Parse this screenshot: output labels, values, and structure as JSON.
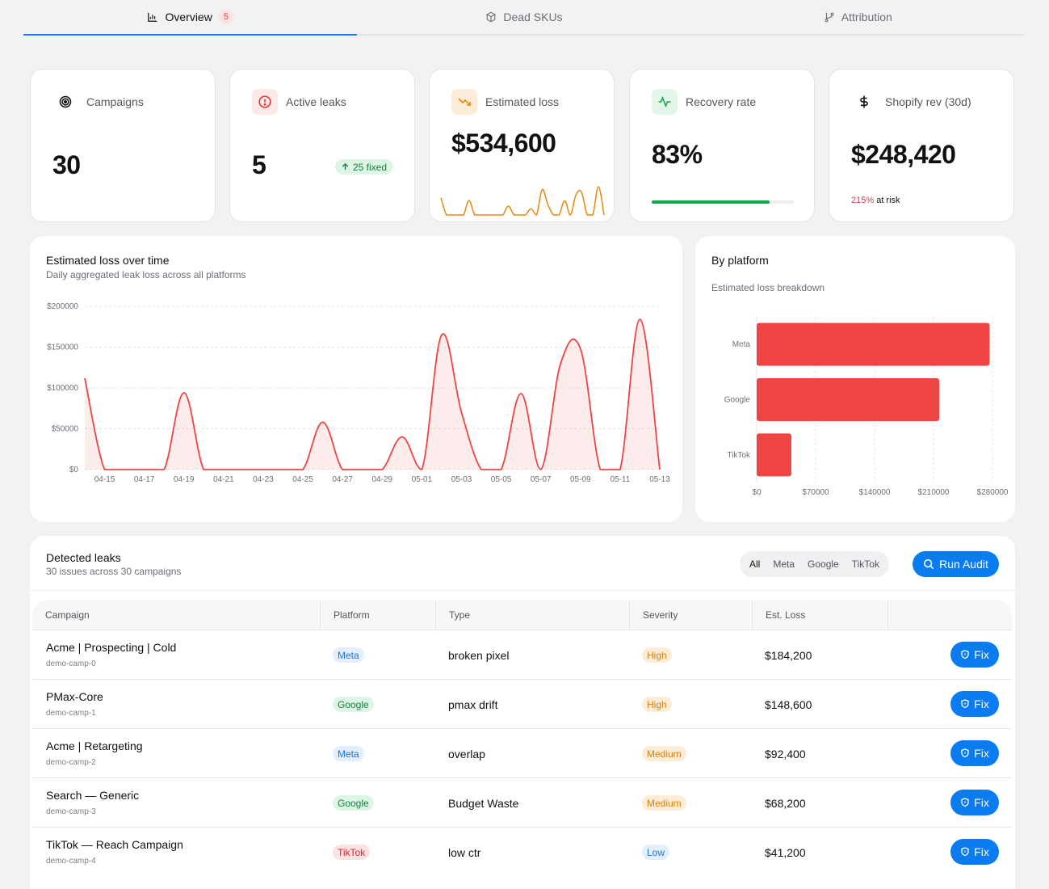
{
  "tabs": [
    {
      "label": "Overview",
      "badge": "5",
      "active": true,
      "icon": "bar-chart-icon"
    },
    {
      "label": "Dead SKUs",
      "active": false,
      "icon": "package-icon"
    },
    {
      "label": "Attribution",
      "active": false,
      "icon": "git-branch-icon"
    }
  ],
  "kpis": {
    "campaigns": {
      "label": "Campaigns",
      "value": "30",
      "icon": "target-icon"
    },
    "active_leaks": {
      "label": "Active leaks",
      "value": "5",
      "fixed": "25 fixed",
      "icon": "alert-circle-icon"
    },
    "estimated_loss": {
      "label": "Estimated loss",
      "value": "$534,600",
      "icon": "trending-down-icon"
    },
    "recovery_rate": {
      "label": "Recovery rate",
      "value": "83%",
      "progress": 0.83,
      "icon": "activity-icon"
    },
    "shopify_rev": {
      "label": "Shopify rev (30d)",
      "value": "$248,420",
      "risk_pct": "215%",
      "risk_text": "at risk",
      "icon": "dollar-icon"
    }
  },
  "loss_chart": {
    "title": "Estimated loss over time",
    "subtitle": "Daily aggregated leak loss across all platforms"
  },
  "platform_chart": {
    "title": "By platform",
    "subtitle": "Estimated loss breakdown"
  },
  "chart_data": [
    {
      "type": "area",
      "title": "Estimated loss over time",
      "x": [
        "04-14",
        "04-15",
        "04-16",
        "04-17",
        "04-18",
        "04-19",
        "04-20",
        "04-21",
        "04-22",
        "04-23",
        "04-24",
        "04-25",
        "04-26",
        "04-27",
        "04-28",
        "04-29",
        "04-30",
        "05-01",
        "05-02",
        "05-03",
        "05-04",
        "05-05",
        "05-06",
        "05-07",
        "05-08",
        "05-09",
        "05-10",
        "05-11",
        "05-12",
        "05-13"
      ],
      "x_ticks": [
        "04-15",
        "04-17",
        "04-19",
        "04-21",
        "04-23",
        "04-25",
        "04-27",
        "04-29",
        "05-01",
        "05-03",
        "05-05",
        "05-07",
        "05-09",
        "05-11",
        "05-13"
      ],
      "values": [
        112000,
        0,
        0,
        0,
        0,
        94000,
        0,
        0,
        0,
        0,
        0,
        0,
        58000,
        0,
        0,
        0,
        40000,
        0,
        165000,
        70000,
        0,
        0,
        93000,
        0,
        130000,
        148000,
        0,
        0,
        184000,
        0
      ],
      "y_ticks": [
        "$0",
        "$50000",
        "$100000",
        "$150000",
        "$200000"
      ],
      "ylim": [
        0,
        200000
      ],
      "color": "#ef4444",
      "grid": true
    },
    {
      "type": "bar",
      "orientation": "horizontal",
      "title": "By platform",
      "categories": [
        "Meta",
        "Google",
        "TikTok"
      ],
      "values": [
        276600,
        216800,
        41200
      ],
      "x_ticks": [
        "$0",
        "$70000",
        "$140000",
        "$210000",
        "$280000"
      ],
      "xlim": [
        0,
        280000
      ],
      "color": "#ef4444",
      "grid": true
    }
  ],
  "leaks": {
    "title": "Detected leaks",
    "subtitle": "30 issues across 30 campaigns",
    "filters": [
      "All",
      "Meta",
      "Google",
      "TikTok"
    ],
    "active_filter": "All",
    "run_audit": "Run Audit",
    "columns": [
      "Campaign",
      "Platform",
      "Type",
      "Severity",
      "Est. Loss"
    ],
    "fix_label": "Fix",
    "rows": [
      {
        "name": "Acme | Prospecting | Cold",
        "id": "demo-camp-0",
        "platform": "Meta",
        "platform_class": "meta",
        "type": "broken pixel",
        "severity": "High",
        "severity_class": "high",
        "loss": "$184,200"
      },
      {
        "name": "PMax-Core",
        "id": "demo-camp-1",
        "platform": "Google",
        "platform_class": "google",
        "type": "pmax drift",
        "severity": "High",
        "severity_class": "high",
        "loss": "$148,600"
      },
      {
        "name": "Acme | Retargeting",
        "id": "demo-camp-2",
        "platform": "Meta",
        "platform_class": "meta",
        "type": "overlap",
        "severity": "Medium",
        "severity_class": "medium",
        "loss": "$92,400"
      },
      {
        "name": "Search — Generic",
        "id": "demo-camp-3",
        "platform": "Google",
        "platform_class": "google",
        "type": "Budget Waste",
        "severity": "Medium",
        "severity_class": "medium",
        "loss": "$68,200"
      },
      {
        "name": "TikTok — Reach Campaign",
        "id": "demo-camp-4",
        "platform": "TikTok",
        "platform_class": "tiktok",
        "type": "low ctr",
        "severity": "Low",
        "severity_class": "low",
        "loss": "$41,200"
      }
    ]
  }
}
